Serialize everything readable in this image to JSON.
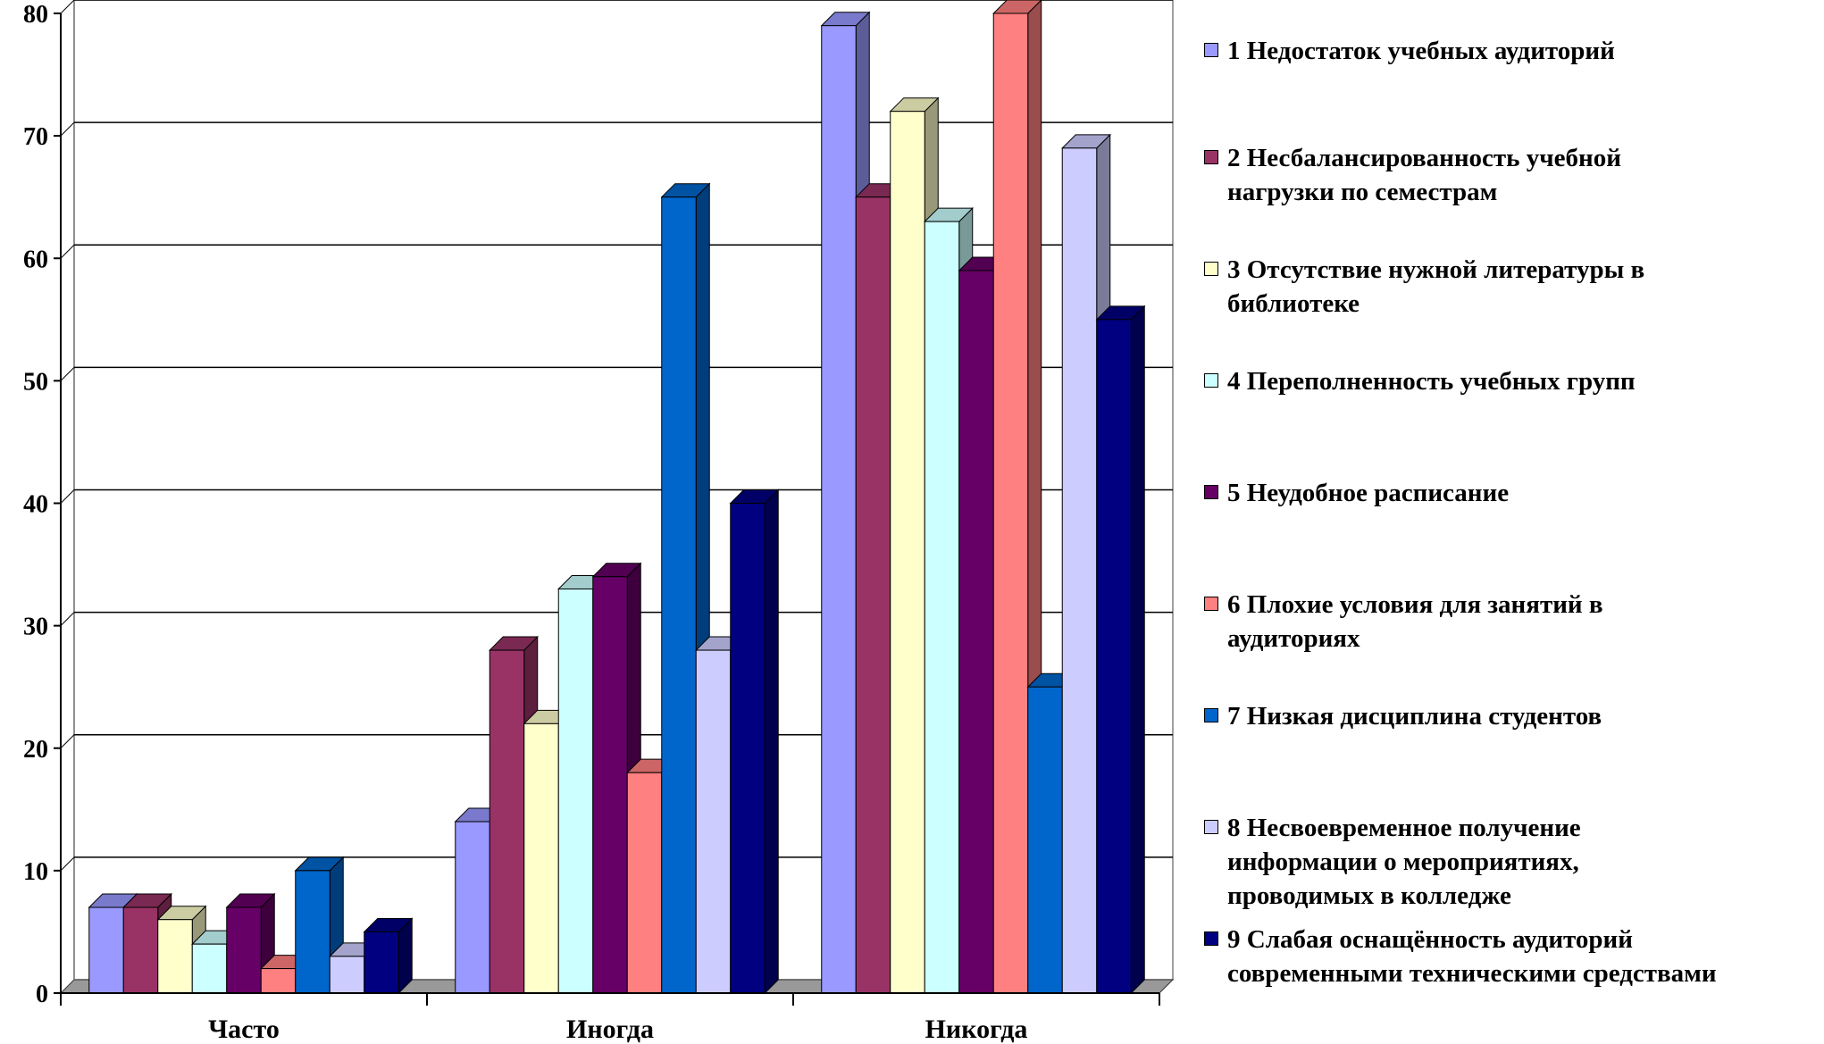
{
  "chart_data": {
    "type": "bar",
    "title": "",
    "xlabel": "",
    "ylabel": "",
    "ylim": [
      0,
      80
    ],
    "yticks": [
      "0",
      "10",
      "20",
      "30",
      "40",
      "50",
      "60",
      "70",
      "80"
    ],
    "categories": [
      "Часто",
      "Иногда",
      "Никогда"
    ],
    "grid": true,
    "style": "3d-clustered",
    "legend_position": "right",
    "series": [
      {
        "name": "1 Недостаток учебных аудиторий",
        "color": "#9999ff",
        "values": [
          7,
          14,
          79
        ]
      },
      {
        "name": "2 Несбалансированность учебной нагрузки по семестрам",
        "color": "#993366",
        "values": [
          7,
          28,
          65
        ]
      },
      {
        "name": "3 Отсутствие нужной литературы в библиотеке",
        "color": "#ffffcc",
        "values": [
          6,
          22,
          72
        ]
      },
      {
        "name": "4 Переполненность учебных групп",
        "color": "#ccffff",
        "values": [
          4,
          33,
          63
        ]
      },
      {
        "name": "5 Неудобное расписание",
        "color": "#660066",
        "values": [
          7,
          34,
          59
        ]
      },
      {
        "name": "6 Плохие условия для занятий в аудиториях",
        "color": "#ff8080",
        "values": [
          2,
          18,
          80
        ]
      },
      {
        "name": "7 Низкая дисциплина студентов",
        "color": "#0066cc",
        "values": [
          10,
          65,
          25
        ]
      },
      {
        "name": "8 Несвоевременное получение информации о мероприятиях, проводимых  в колледже",
        "color": "#ccccff",
        "values": [
          3,
          28,
          69
        ]
      },
      {
        "name": "9 Слабая оснащённость аудиторий современными техническими средствами",
        "color": "#000080",
        "values": [
          5,
          40,
          55
        ]
      }
    ]
  },
  "legend": {
    "items": [
      {
        "label": "1 Недостаток учебных аудиторий"
      },
      {
        "label": "2 Несбалансированность учебной\nнагрузки по семестрам"
      },
      {
        "label": "3 Отсутствие нужной литературы в\nбиблиотеке"
      },
      {
        "label": "4 Переполненность учебных групп"
      },
      {
        "label": "5 Неудобное расписание"
      },
      {
        "label": "6 Плохие условия для занятий в\nаудиториях"
      },
      {
        "label": "7 Низкая дисциплина студентов"
      },
      {
        "label": "8 Несвоевременное получение\nинформации о мероприятиях,\nпроводимых  в колледже"
      },
      {
        "label": "9 Слабая оснащённость аудиторий\nсовременными техническими средствами"
      }
    ]
  }
}
